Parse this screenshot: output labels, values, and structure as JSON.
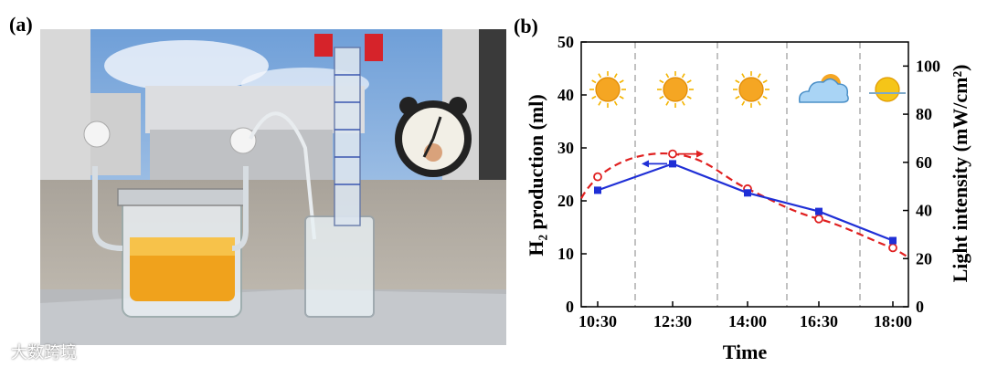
{
  "figure": {
    "panel_a_label": "(a)",
    "panel_b_label": "(b)",
    "watermark": "大数跨境"
  },
  "chart_data": {
    "type": "line",
    "x_categories": [
      "10:30",
      "12:30",
      "14:00",
      "16:30",
      "18:00"
    ],
    "xlabel": "Time",
    "ylabel_left": "H₂ production (ml)",
    "ylabel_right": "Light intensity (mW/cm²)",
    "ylim_left": [
      0,
      50
    ],
    "yticks_left": [
      0,
      10,
      20,
      30,
      40,
      50
    ],
    "ylim_right": [
      0,
      110
    ],
    "yticks_right": [
      0,
      20,
      40,
      60,
      80,
      100
    ],
    "grid": "vertical dashed separators between time periods",
    "series": [
      {
        "axis": "left",
        "style": "solid line, square markers",
        "color": "#1f2fd6",
        "x": [
          "10:30",
          "12:30",
          "14:00",
          "16:30",
          "18:00"
        ],
        "values": [
          22,
          27,
          21.5,
          18,
          12.5
        ]
      },
      {
        "axis": "right",
        "style": "dashed line, open circle markers",
        "color": "#e02020",
        "x": [
          "10:30",
          "12:30",
          "14:00",
          "16:30",
          "18:00"
        ],
        "values": [
          54,
          63.5,
          49,
          36.5,
          24.5
        ]
      }
    ],
    "weather_icons": [
      "sunny",
      "sunny",
      "sunny",
      "partly-cloudy",
      "sunset"
    ],
    "annotations": [
      {
        "kind": "arrow",
        "points_to": "left axis",
        "series": 0
      },
      {
        "kind": "arrow",
        "points_to": "right axis",
        "series": 1
      }
    ]
  }
}
